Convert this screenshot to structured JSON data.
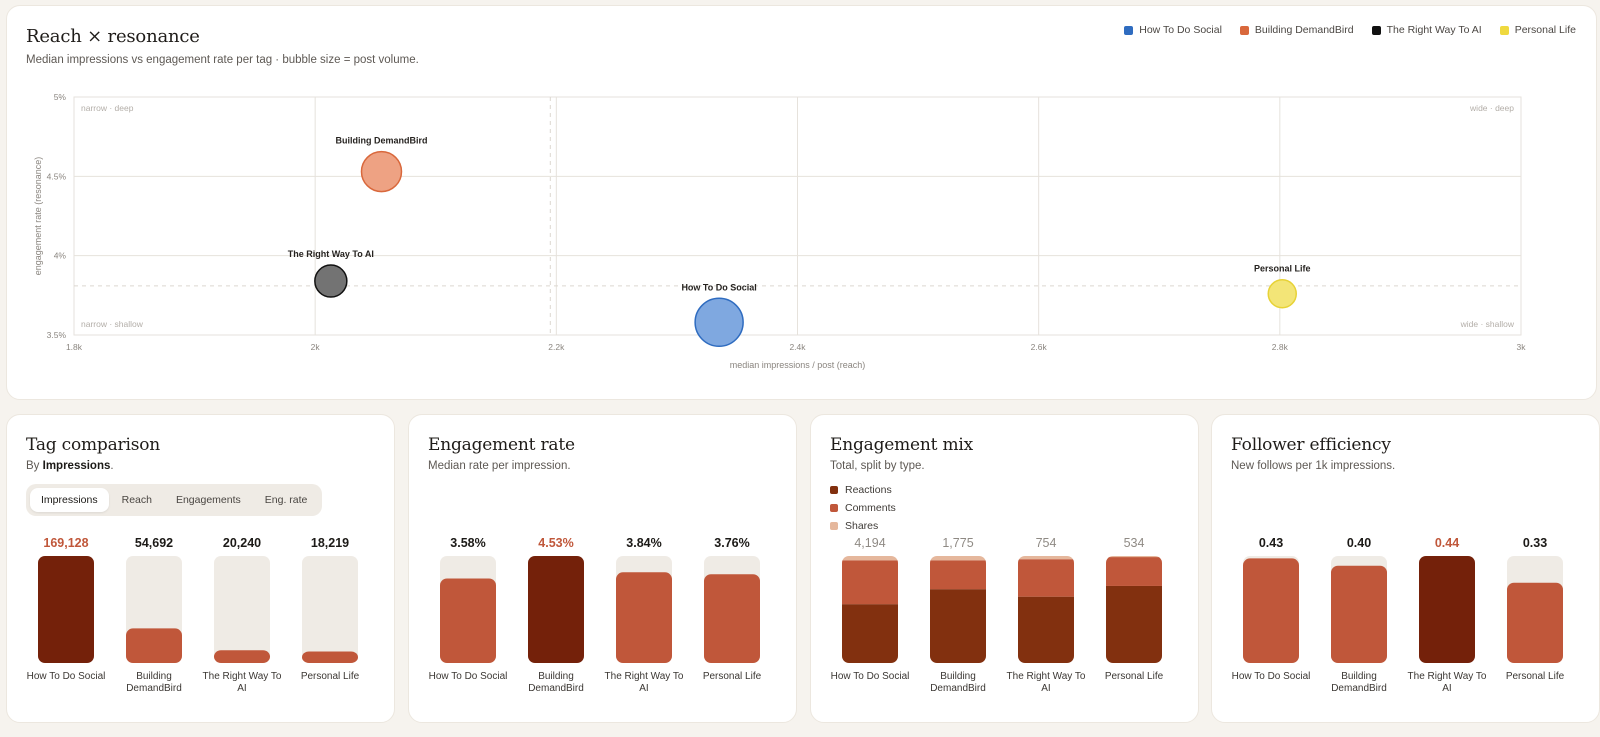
{
  "scatter": {
    "title": "Reach × resonance",
    "subtitle": "Median impressions vs engagement rate per tag · bubble size = post volume.",
    "legend": [
      {
        "label": "How To Do Social",
        "color": "#2f6cc0"
      },
      {
        "label": "Building DemandBird",
        "color": "#d9683c"
      },
      {
        "label": "The Right Way To AI",
        "color": "#111111"
      },
      {
        "label": "Personal Life",
        "color": "#efd93f"
      }
    ],
    "quadrant_labels": {
      "top_left": "narrow · deep",
      "top_right": "wide · deep",
      "bottom_left": "narrow · shallow",
      "bottom_right": "wide · shallow"
    }
  },
  "chart_data": [
    {
      "type": "scatter",
      "title": "Reach × resonance",
      "xlabel": "median impressions / post (reach)",
      "ylabel": "engagement rate (resonance)",
      "xlim": [
        1800,
        3000
      ],
      "ylim": [
        3.5,
        5
      ],
      "x_ticks": [
        {
          "v": 1800,
          "label": "1.8k"
        },
        {
          "v": 2000,
          "label": "2k"
        },
        {
          "v": 2200,
          "label": "2.2k"
        },
        {
          "v": 2400,
          "label": "2.4k"
        },
        {
          "v": 2600,
          "label": "2.6k"
        },
        {
          "v": 2800,
          "label": "2.8k"
        },
        {
          "v": 3000,
          "label": "3k"
        }
      ],
      "y_ticks": [
        {
          "v": 3.5,
          "label": "3.5%"
        },
        {
          "v": 4,
          "label": "4%"
        },
        {
          "v": 4.5,
          "label": "4.5%"
        },
        {
          "v": 5,
          "label": "5%"
        }
      ],
      "median_x": 2195,
      "median_y": 3.81,
      "grid": true,
      "points": [
        {
          "name": "How To Do Social",
          "x": 2335,
          "y": 3.58,
          "size": 12,
          "fill": "#7fa8e0",
          "stroke": "#2f6cc0"
        },
        {
          "name": "Building DemandBird",
          "x": 2055,
          "y": 4.53,
          "size": 10,
          "fill": "#eea283",
          "stroke": "#d9683c"
        },
        {
          "name": "The Right Way To AI",
          "x": 2013,
          "y": 3.84,
          "size": 8,
          "fill": "#737373",
          "stroke": "#111111"
        },
        {
          "name": "Personal Life",
          "x": 2802,
          "y": 3.76,
          "size": 7,
          "fill": "#f3e577",
          "stroke": "#e7d236"
        }
      ]
    },
    {
      "type": "bar",
      "title": "Tag comparison",
      "categories": [
        "How To Do Social",
        "Building DemandBird",
        "The Right Way To AI",
        "Personal Life"
      ],
      "values": [
        169128,
        54692,
        20240,
        18219
      ],
      "labels": [
        "169,128",
        "54,692",
        "20,240",
        "18,219"
      ],
      "ylim": [
        0,
        169128
      ]
    },
    {
      "type": "bar",
      "title": "Engagement rate",
      "categories": [
        "How To Do Social",
        "Building DemandBird",
        "The Right Way To AI",
        "Personal Life"
      ],
      "values": [
        3.58,
        4.53,
        3.84,
        3.76
      ],
      "labels": [
        "3.58%",
        "4.53%",
        "3.84%",
        "3.76%"
      ],
      "ylim": [
        0,
        4.53
      ]
    },
    {
      "type": "bar",
      "title": "Engagement mix",
      "categories": [
        "How To Do Social",
        "Building DemandBird",
        "The Right Way To AI",
        "Personal Life"
      ],
      "totals": [
        4194,
        1775,
        754,
        534
      ],
      "labels": [
        "4,194",
        "1,775",
        "754",
        "534"
      ],
      "series": [
        {
          "name": "Reactions",
          "color": "#82300f",
          "share": [
            0.55,
            0.69,
            0.62,
            0.72
          ]
        },
        {
          "name": "Comments",
          "color": "#c0573a",
          "share": [
            0.41,
            0.27,
            0.35,
            0.27
          ]
        },
        {
          "name": "Shares",
          "color": "#e5b79c",
          "share": [
            0.04,
            0.04,
            0.03,
            0.01
          ]
        }
      ]
    },
    {
      "type": "bar",
      "title": "Follower efficiency",
      "categories": [
        "How To Do Social",
        "Building DemandBird",
        "The Right Way To AI",
        "Personal Life"
      ],
      "values": [
        0.43,
        0.4,
        0.44,
        0.33
      ],
      "labels": [
        "0.43",
        "0.40",
        "0.44",
        "0.33"
      ],
      "ylim": [
        0,
        0.44
      ]
    }
  ],
  "tags_card": {
    "title": "Tag comparison",
    "sub_prefix": "By ",
    "sub_metric": "Impressions",
    "sub_suffix": ".",
    "tabs": [
      "Impressions",
      "Reach",
      "Engagements",
      "Eng. rate"
    ],
    "active_tab": "Impressions"
  },
  "eng_card": {
    "title": "Engagement rate",
    "subtitle": "Median rate per impression."
  },
  "mix_card": {
    "title": "Engagement mix",
    "subtitle": "Total, split by type."
  },
  "foll_card": {
    "title": "Follower efficiency",
    "subtitle": "New follows per 1k impressions."
  },
  "colors": {
    "bar": "#c0573a",
    "bar_top": "#74210a",
    "track": "#efebe5",
    "highlight_text": "#c0573a",
    "muted_text": "#8f8a84",
    "grid": "#e6e2dc"
  }
}
